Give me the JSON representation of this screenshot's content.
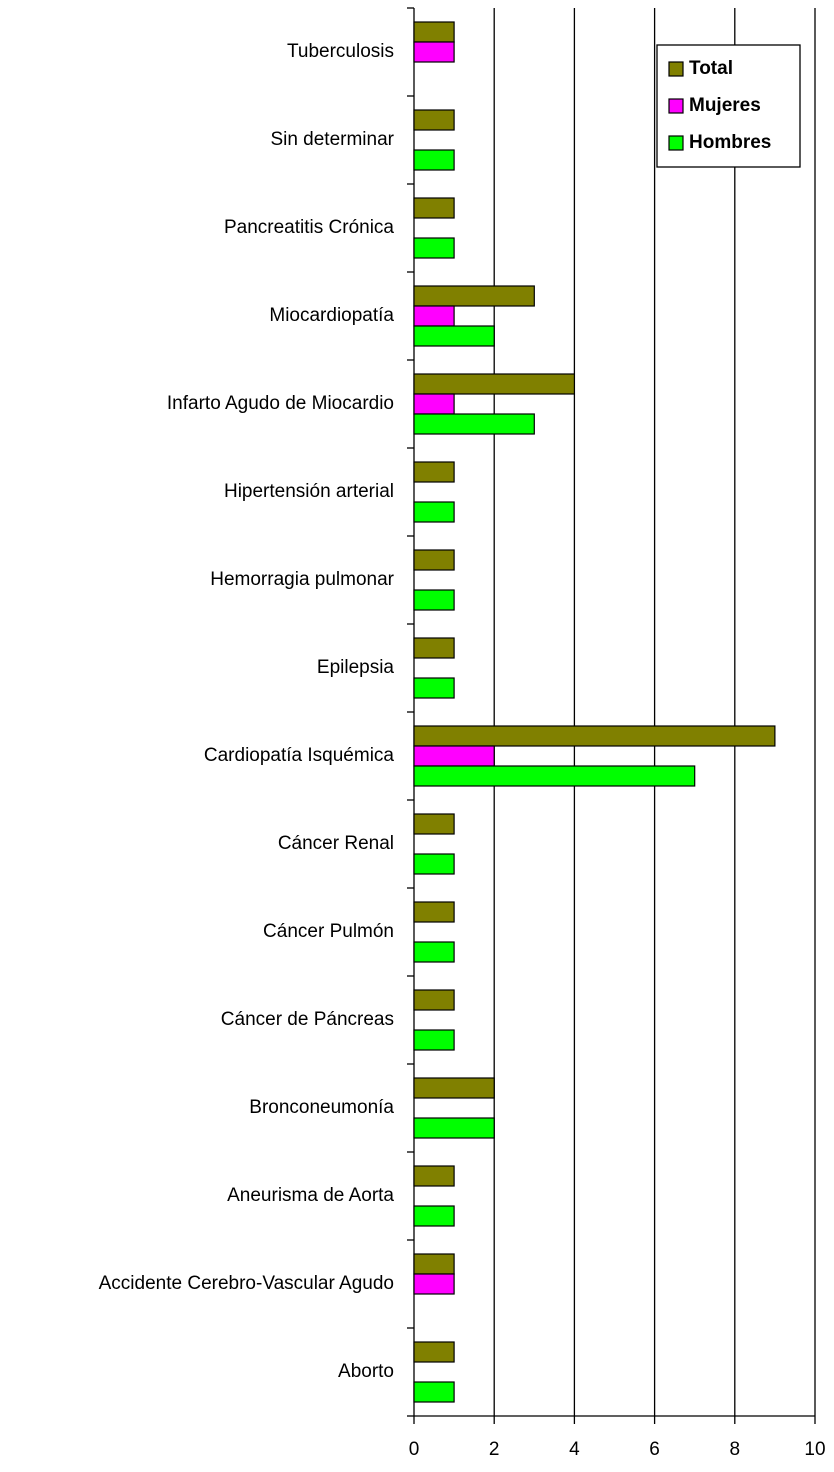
{
  "chart_data": {
    "type": "barh",
    "categories": [
      "Tuberculosis",
      "Sin determinar",
      "Pancreatitis Crónica",
      "Miocardiopatía",
      "Infarto Agudo de Miocardio",
      "Hipertensión arterial",
      "Hemorragia pulmonar",
      "Epilepsia",
      "Cardiopatía Isquémica",
      "Cáncer  Renal",
      "Cáncer Pulmón",
      "Cáncer de Páncreas",
      "Bronconeumonía",
      "Aneurisma de Aorta",
      "Accidente Cerebro-Vascular Agudo",
      "Aborto"
    ],
    "series": [
      {
        "name": "Total",
        "color": "#808000",
        "values": [
          1,
          1,
          1,
          3,
          4,
          1,
          1,
          1,
          9,
          1,
          1,
          1,
          2,
          1,
          1,
          1
        ]
      },
      {
        "name": "Mujeres",
        "color": "#ff00ff",
        "values": [
          1,
          0,
          0,
          1,
          1,
          0,
          0,
          0,
          2,
          0,
          0,
          0,
          0,
          0,
          1,
          0
        ]
      },
      {
        "name": "Hombres",
        "color": "#00ff00",
        "values": [
          0,
          1,
          1,
          2,
          3,
          1,
          1,
          1,
          7,
          1,
          1,
          1,
          2,
          1,
          0,
          1
        ]
      }
    ],
    "xlim": [
      0,
      10
    ],
    "xticks": [
      0,
      2,
      4,
      6,
      8,
      10
    ],
    "grid": true,
    "legend": "upper right"
  }
}
